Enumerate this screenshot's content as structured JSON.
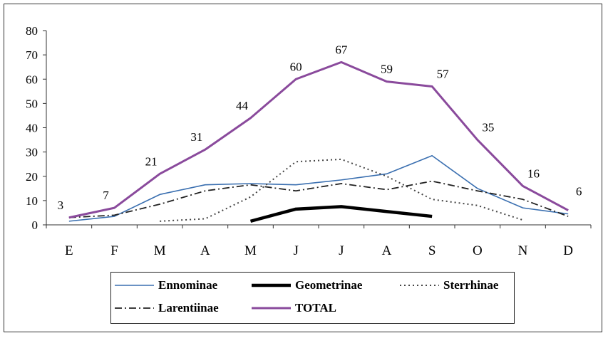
{
  "chart_data": {
    "type": "line",
    "categories": [
      "E",
      "F",
      "M",
      "A",
      "M",
      "J",
      "J",
      "A",
      "S",
      "O",
      "N",
      "D"
    ],
    "ylim": [
      0,
      80
    ],
    "yticks": [
      0,
      10,
      20,
      30,
      40,
      50,
      60,
      70,
      80
    ],
    "grid": false,
    "legend_position": "bottom",
    "series": [
      {
        "name": "Ennominae",
        "color": "#3a6fb0",
        "style": "solid",
        "values": [
          1.5,
          3.5,
          12.5,
          16.5,
          17,
          16.5,
          18.5,
          21,
          28.5,
          15,
          7,
          4.5
        ]
      },
      {
        "name": "Geometrinae",
        "color": "#000000",
        "style": "thick",
        "values": [
          null,
          null,
          null,
          null,
          1.5,
          6.5,
          7.5,
          5.5,
          3.5,
          null,
          null,
          null
        ]
      },
      {
        "name": "Sterrhinae",
        "color": "#444444",
        "style": "dotted",
        "values": [
          null,
          null,
          1.5,
          2.5,
          11.5,
          26,
          27,
          20,
          10.5,
          8,
          2,
          null
        ]
      },
      {
        "name": "Larentiinae",
        "color": "#222222",
        "style": "dashdot",
        "values": [
          3,
          4,
          8.5,
          14,
          16.5,
          14,
          17,
          14.5,
          18,
          14,
          10.5,
          3.5
        ]
      },
      {
        "name": "TOTAL",
        "color": "#8a4a9c",
        "style": "solid",
        "values": [
          3,
          7,
          21,
          31,
          44,
          60,
          67,
          59,
          57,
          35,
          16,
          6
        ],
        "labels": [
          "3",
          "7",
          "21",
          "31",
          "44",
          "60",
          "67",
          "59",
          "57",
          "35",
          "16",
          "6"
        ]
      }
    ]
  }
}
